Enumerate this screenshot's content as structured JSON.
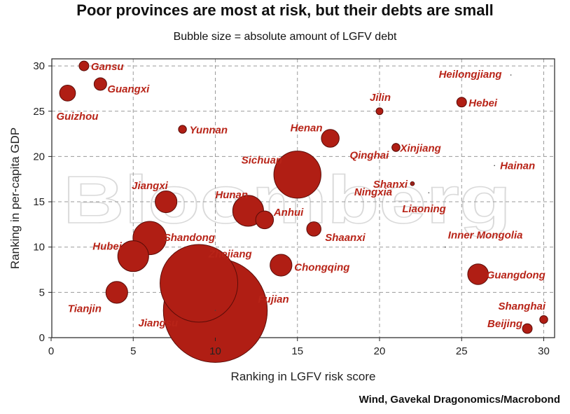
{
  "chart_data": {
    "type": "scatter",
    "title": "Poor provinces are most at risk, but their debts are small",
    "subtitle": "Bubble size = absolute amount of LGFV debt",
    "xlabel": "Ranking in LGFV risk score",
    "ylabel": "Ranking in per-capita GDP",
    "xlim": [
      0,
      31
    ],
    "ylim": [
      0,
      31
    ],
    "xticks": [
      0,
      5,
      10,
      15,
      20,
      25,
      30
    ],
    "yticks": [
      0,
      5,
      10,
      15,
      20,
      25,
      30
    ],
    "grid": true,
    "watermark": "Bloomberg",
    "source": "Wind, Gavekal Dragonomics/Macrobond",
    "colors": {
      "bubble": "#b01e14",
      "bubble_edge": "#5a0c08",
      "label": "#b82418"
    },
    "points": [
      {
        "name": "Gansu",
        "x": 2,
        "y": 30,
        "size": 0.6
      },
      {
        "name": "Guizhou",
        "x": 1,
        "y": 27,
        "size": 1.6
      },
      {
        "name": "Guangxi",
        "x": 3,
        "y": 28,
        "size": 1.0
      },
      {
        "name": "Yunnan",
        "x": 8,
        "y": 23,
        "size": 0.4
      },
      {
        "name": "Jilin",
        "x": 20,
        "y": 25,
        "size": 0.3
      },
      {
        "name": "Heilongjiang",
        "x": 28,
        "y": 29,
        "size": 0.0
      },
      {
        "name": "Hebei",
        "x": 25,
        "y": 26,
        "size": 0.6
      },
      {
        "name": "Henan",
        "x": 17,
        "y": 22,
        "size": 2.0
      },
      {
        "name": "Qinghai",
        "x": 21,
        "y": 21,
        "size": 0.4
      },
      {
        "name": "Xinjiang",
        "x": 21,
        "y": 21,
        "size": 0.4
      },
      {
        "name": "Ningxia",
        "x": 22,
        "y": 17,
        "size": 0.0
      },
      {
        "name": "Sichuan",
        "x": 15,
        "y": 18,
        "size": 14.0
      },
      {
        "name": "Hainan",
        "x": 27,
        "y": 19,
        "size": 0.0
      },
      {
        "name": "Shanxi",
        "x": 22,
        "y": 17,
        "size": 0.1
      },
      {
        "name": "Jiangxi",
        "x": 7,
        "y": 15,
        "size": 3.0
      },
      {
        "name": "Hunan",
        "x": 12,
        "y": 14,
        "size": 6.0
      },
      {
        "name": "Liaoning",
        "x": 23,
        "y": 16,
        "size": 0.0
      },
      {
        "name": "Anhui",
        "x": 13,
        "y": 13,
        "size": 2.0
      },
      {
        "name": "Shandong",
        "x": 6,
        "y": 11,
        "size": 7.0
      },
      {
        "name": "Shaanxi",
        "x": 16,
        "y": 12,
        "size": 1.3
      },
      {
        "name": "Hubei",
        "x": 5,
        "y": 9,
        "size": 6.0
      },
      {
        "name": "Inner Mongolia",
        "x": 24,
        "y": 10,
        "size": 0.0
      },
      {
        "name": "Zhejiang",
        "x": 9,
        "y": 6,
        "size": 38.0
      },
      {
        "name": "Chongqing",
        "x": 14,
        "y": 8,
        "size": 3.0
      },
      {
        "name": "Guangdong",
        "x": 26,
        "y": 7,
        "size": 2.7
      },
      {
        "name": "Tianjin",
        "x": 4,
        "y": 5,
        "size": 3.0
      },
      {
        "name": "Jiangsu",
        "x": 10,
        "y": 3,
        "size": 68.0
      },
      {
        "name": "Fujian",
        "x": 10,
        "y": 3,
        "size": 0.0
      },
      {
        "name": "Shanghai",
        "x": 30,
        "y": 2,
        "size": 0.4
      },
      {
        "name": "Beijing",
        "x": 29,
        "y": 1,
        "size": 0.6
      }
    ]
  }
}
